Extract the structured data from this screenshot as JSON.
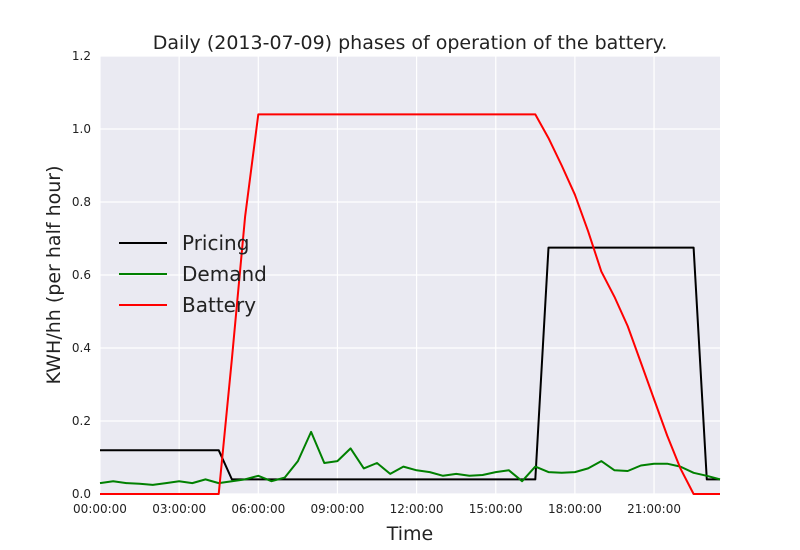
{
  "chart_data": {
    "type": "line",
    "title": "Daily (2013-07-09) phases of operation of the battery.",
    "xlabel": "Time",
    "ylabel": "KWH/hh (per half hour)",
    "xlim": [
      0,
      23.5
    ],
    "ylim": [
      0,
      1.2
    ],
    "xticks": [
      {
        "value": 0,
        "label": "00:00:00"
      },
      {
        "value": 3,
        "label": "03:00:00"
      },
      {
        "value": 6,
        "label": "06:00:00"
      },
      {
        "value": 9,
        "label": "09:00:00"
      },
      {
        "value": 12,
        "label": "12:00:00"
      },
      {
        "value": 15,
        "label": "15:00:00"
      },
      {
        "value": 18,
        "label": "18:00:00"
      },
      {
        "value": 21,
        "label": "21:00:00"
      }
    ],
    "yticks": [
      {
        "value": 0,
        "label": "0.0"
      },
      {
        "value": 0.2,
        "label": "0.2"
      },
      {
        "value": 0.4,
        "label": "0.4"
      },
      {
        "value": 0.6,
        "label": "0.6"
      },
      {
        "value": 0.8,
        "label": "0.8"
      },
      {
        "value": 1.0,
        "label": "1.0"
      },
      {
        "value": 1.2,
        "label": "1.2"
      }
    ],
    "grid": true,
    "legend_position": "center-left",
    "series": [
      {
        "name": "Pricing",
        "color": "#000000",
        "x": [
          0,
          4.5,
          5,
          16.5,
          17,
          22.5,
          23,
          23.5
        ],
        "y": [
          0.12,
          0.12,
          0.04,
          0.04,
          0.675,
          0.675,
          0.04,
          0.04
        ]
      },
      {
        "name": "Demand",
        "color": "#008000",
        "x": [
          0,
          0.5,
          1,
          1.5,
          2,
          2.5,
          3,
          3.5,
          4,
          4.5,
          5,
          5.5,
          6,
          6.5,
          7,
          7.5,
          8,
          8.5,
          9,
          9.5,
          10,
          10.5,
          11,
          11.5,
          12,
          12.5,
          13,
          13.5,
          14,
          14.5,
          15,
          15.5,
          16,
          16.5,
          17,
          17.5,
          18,
          18.5,
          19,
          19.5,
          20,
          20.5,
          21,
          21.5,
          22,
          22.5,
          23,
          23.5
        ],
        "y": [
          0.03,
          0.035,
          0.03,
          0.028,
          0.025,
          0.03,
          0.035,
          0.03,
          0.04,
          0.03,
          0.035,
          0.04,
          0.05,
          0.035,
          0.045,
          0.09,
          0.17,
          0.085,
          0.09,
          0.125,
          0.07,
          0.085,
          0.055,
          0.075,
          0.065,
          0.06,
          0.05,
          0.055,
          0.05,
          0.052,
          0.06,
          0.065,
          0.035,
          0.075,
          0.06,
          0.058,
          0.06,
          0.07,
          0.09,
          0.065,
          0.063,
          0.078,
          0.083,
          0.083,
          0.075,
          0.058,
          0.05,
          0.04
        ]
      },
      {
        "name": "Battery",
        "color": "#ff0000",
        "x": [
          0,
          4.5,
          5,
          5.5,
          6,
          16.5,
          17,
          17.5,
          18,
          18.5,
          19,
          19.5,
          20,
          20.5,
          21,
          21.5,
          22,
          22.5,
          23.5
        ],
        "y": [
          0,
          0,
          0.37,
          0.76,
          1.04,
          1.04,
          0.975,
          0.9,
          0.82,
          0.72,
          0.61,
          0.54,
          0.46,
          0.36,
          0.26,
          0.16,
          0.07,
          0,
          0
        ]
      }
    ]
  }
}
